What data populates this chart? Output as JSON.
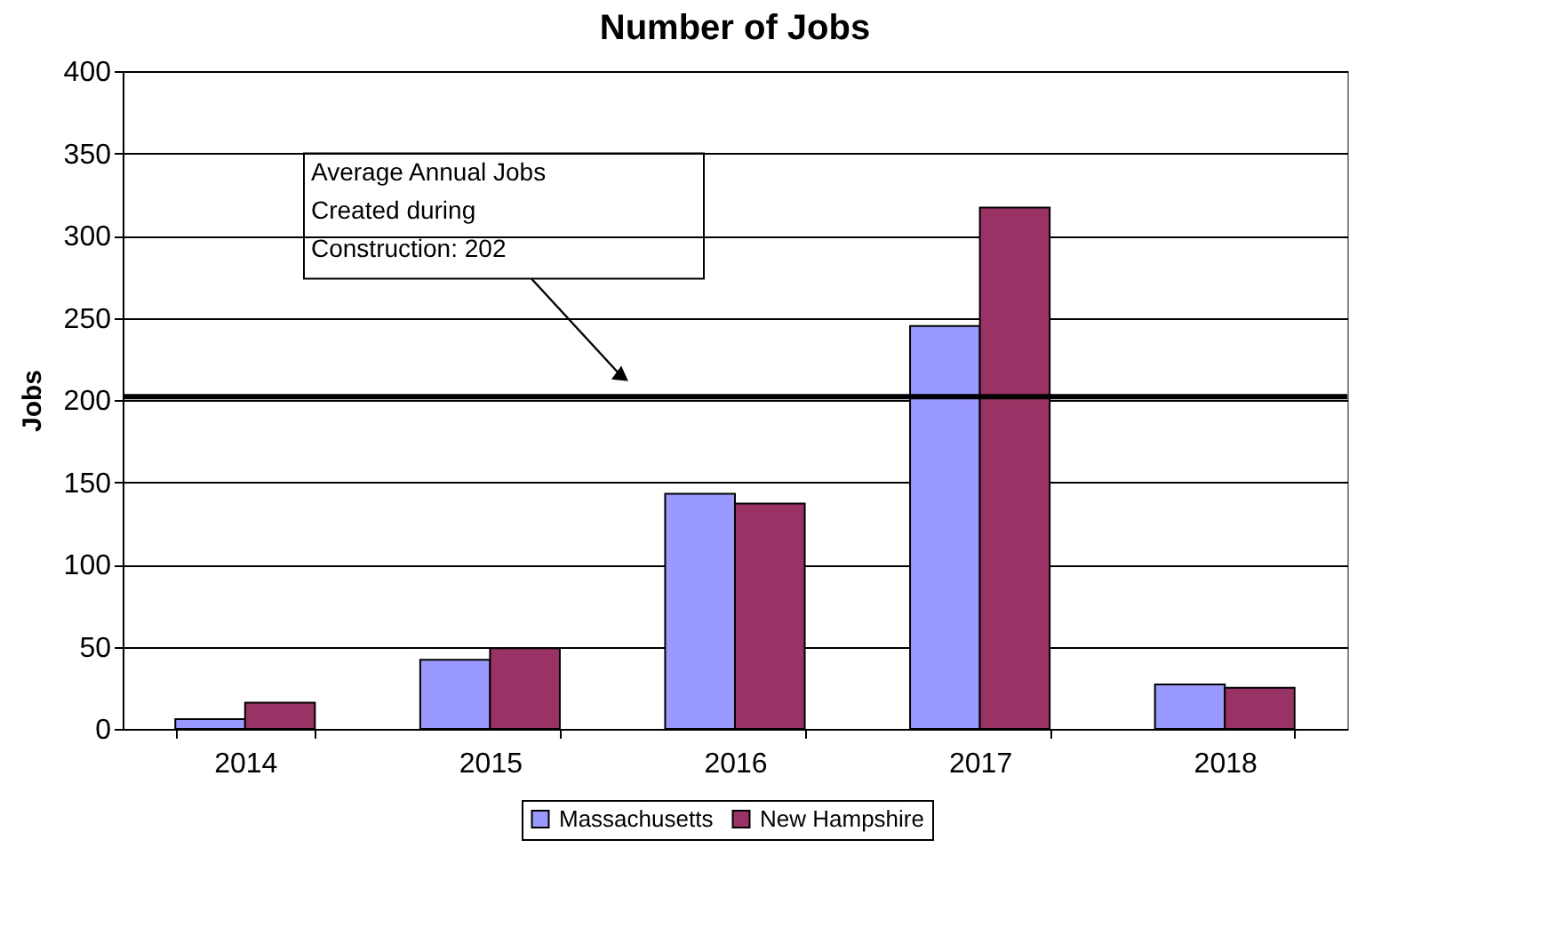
{
  "chart_data": {
    "type": "bar",
    "title": "Number of Jobs",
    "ylabel": "Jobs",
    "categories": [
      "2014",
      "2015",
      "2016",
      "2017",
      "2018"
    ],
    "series": [
      {
        "name": "Massachusetts",
        "color": "#9999ff",
        "values": [
          6,
          42,
          143,
          245,
          27
        ]
      },
      {
        "name": "New Hampshire",
        "color": "#993366",
        "values": [
          16,
          49,
          137,
          317,
          25
        ]
      }
    ],
    "ylim": [
      0,
      400
    ],
    "yticks": [
      0,
      50,
      100,
      150,
      200,
      250,
      300,
      350,
      400
    ],
    "grid": "y",
    "legend": "bottom",
    "ref_lines": [
      {
        "axis": "y",
        "value": 202,
        "label": "Average Annual Jobs\nCreated during\nConstruction:  202",
        "color": "#000000"
      }
    ]
  }
}
